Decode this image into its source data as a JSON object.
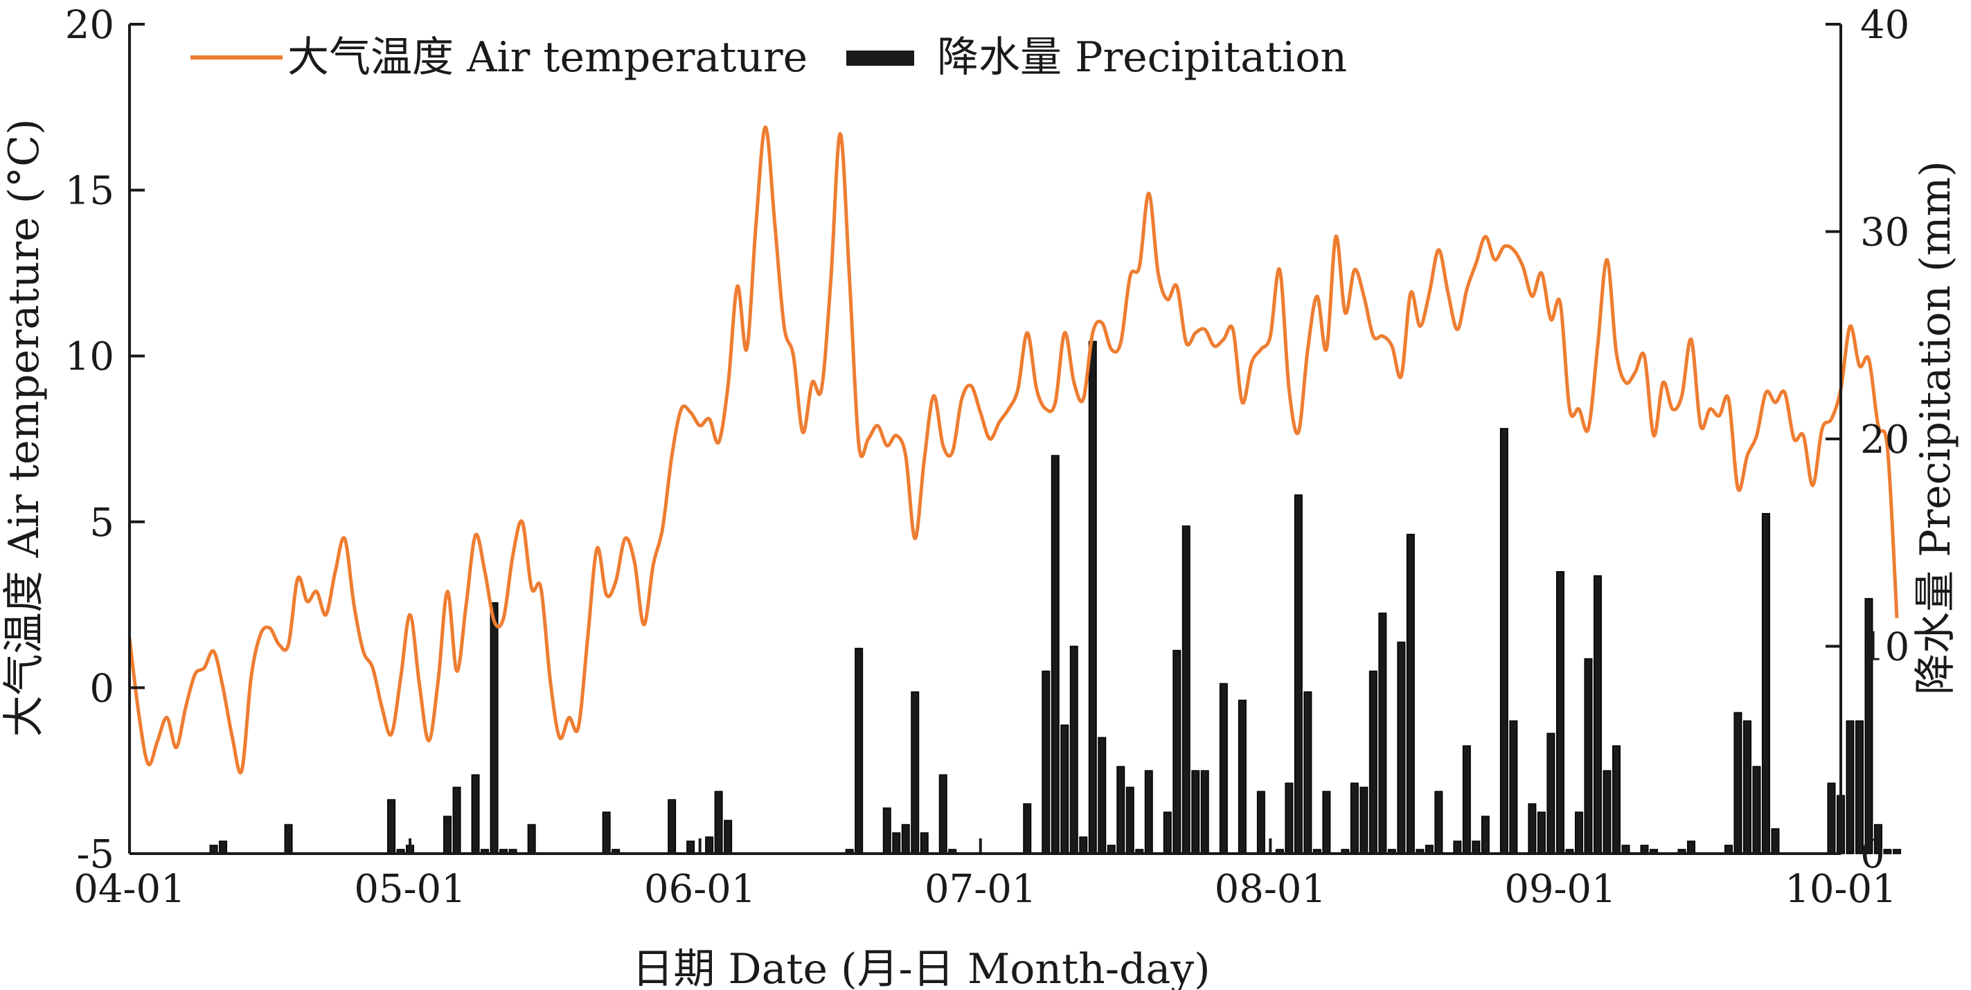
{
  "chart_data": {
    "type": "bar+line",
    "xlabel": "日期 Date (月-日 Month-day)",
    "ylabel_left": "大气温度 Air temperature (°C)",
    "ylabel_right": "降水量 Precipitation (mm)",
    "x_range": [
      "04-01",
      "10-01"
    ],
    "x_ticks": [
      "04-01",
      "05-01",
      "06-01",
      "07-01",
      "08-01",
      "09-01",
      "10-01"
    ],
    "y_left": {
      "min": -5,
      "max": 20,
      "ticks": [
        "-5",
        "0",
        "5",
        "10",
        "15",
        "20"
      ]
    },
    "y_right": {
      "min": 0,
      "max": 40,
      "ticks": [
        "0",
        "10",
        "20",
        "30",
        "40"
      ]
    },
    "legend_position": "top-left",
    "grid": false,
    "series": [
      {
        "name": "大气温度 Air temperature",
        "kind": "line",
        "axis": "left",
        "color": "#EE7D31",
        "points": [
          [
            "04-01",
            1.5
          ],
          [
            "04-02",
            -0.8
          ],
          [
            "04-03",
            -2.3
          ],
          [
            "04-04",
            -1.6
          ],
          [
            "04-05",
            -0.9
          ],
          [
            "04-06",
            -1.8
          ],
          [
            "04-07",
            -0.6
          ],
          [
            "04-08",
            0.4
          ],
          [
            "04-09",
            0.6
          ],
          [
            "04-10",
            1.1
          ],
          [
            "04-11",
            0.0
          ],
          [
            "04-12",
            -1.5
          ],
          [
            "04-13",
            -2.5
          ],
          [
            "04-14",
            0.3
          ],
          [
            "04-15",
            1.6
          ],
          [
            "04-16",
            1.8
          ],
          [
            "04-17",
            1.3
          ],
          [
            "04-18",
            1.3
          ],
          [
            "04-19",
            3.3
          ],
          [
            "04-20",
            2.6
          ],
          [
            "04-21",
            2.9
          ],
          [
            "04-22",
            2.2
          ],
          [
            "04-23",
            3.5
          ],
          [
            "04-24",
            4.5
          ],
          [
            "04-25",
            2.5
          ],
          [
            "04-26",
            1.1
          ],
          [
            "04-27",
            0.6
          ],
          [
            "04-28",
            -0.6
          ],
          [
            "04-29",
            -1.4
          ],
          [
            "04-30",
            0.3
          ],
          [
            "05-01",
            2.2
          ],
          [
            "05-02",
            0.1
          ],
          [
            "05-03",
            -1.6
          ],
          [
            "05-04",
            0.2
          ],
          [
            "05-05",
            2.9
          ],
          [
            "05-06",
            0.5
          ],
          [
            "05-07",
            2.5
          ],
          [
            "05-08",
            4.6
          ],
          [
            "05-09",
            3.5
          ],
          [
            "05-10",
            2.0
          ],
          [
            "05-11",
            2.1
          ],
          [
            "05-12",
            4.0
          ],
          [
            "05-13",
            5.0
          ],
          [
            "05-14",
            3.0
          ],
          [
            "05-15",
            3.0
          ],
          [
            "05-16",
            0.2
          ],
          [
            "05-17",
            -1.5
          ],
          [
            "05-18",
            -0.9
          ],
          [
            "05-19",
            -1.2
          ],
          [
            "05-20",
            1.5
          ],
          [
            "05-21",
            4.2
          ],
          [
            "05-22",
            2.8
          ],
          [
            "05-23",
            3.2
          ],
          [
            "05-24",
            4.5
          ],
          [
            "05-25",
            3.8
          ],
          [
            "05-26",
            1.9
          ],
          [
            "05-27",
            3.7
          ],
          [
            "05-28",
            4.8
          ],
          [
            "05-29",
            7.0
          ],
          [
            "05-30",
            8.4
          ],
          [
            "05-31",
            8.3
          ],
          [
            "06-01",
            7.9
          ],
          [
            "06-02",
            8.1
          ],
          [
            "06-03",
            7.4
          ],
          [
            "06-04",
            9.1
          ],
          [
            "06-05",
            12.1
          ],
          [
            "06-06",
            10.2
          ],
          [
            "06-07",
            14.0
          ],
          [
            "06-08",
            16.9
          ],
          [
            "06-09",
            14.0
          ],
          [
            "06-10",
            10.9
          ],
          [
            "06-11",
            10.0
          ],
          [
            "06-12",
            7.7
          ],
          [
            "06-13",
            9.2
          ],
          [
            "06-14",
            9.0
          ],
          [
            "06-15",
            12.3
          ],
          [
            "06-16",
            16.7
          ],
          [
            "06-17",
            12.3
          ],
          [
            "06-18",
            7.3
          ],
          [
            "06-19",
            7.5
          ],
          [
            "06-20",
            7.9
          ],
          [
            "06-21",
            7.3
          ],
          [
            "06-22",
            7.6
          ],
          [
            "06-23",
            7.0
          ],
          [
            "06-24",
            4.5
          ],
          [
            "06-25",
            6.9
          ],
          [
            "06-26",
            8.8
          ],
          [
            "06-27",
            7.3
          ],
          [
            "06-28",
            7.1
          ],
          [
            "06-29",
            8.7
          ],
          [
            "06-30",
            9.1
          ],
          [
            "07-01",
            8.3
          ],
          [
            "07-02",
            7.5
          ],
          [
            "07-03",
            8.0
          ],
          [
            "07-04",
            8.4
          ],
          [
            "07-05",
            9.0
          ],
          [
            "07-06",
            10.7
          ],
          [
            "07-07",
            9.0
          ],
          [
            "07-08",
            8.4
          ],
          [
            "07-09",
            8.6
          ],
          [
            "07-10",
            10.7
          ],
          [
            "07-11",
            9.2
          ],
          [
            "07-12",
            8.7
          ],
          [
            "07-13",
            10.7
          ],
          [
            "07-14",
            11.0
          ],
          [
            "07-15",
            10.2
          ],
          [
            "07-16",
            10.4
          ],
          [
            "07-17",
            12.4
          ],
          [
            "07-18",
            12.7
          ],
          [
            "07-19",
            14.9
          ],
          [
            "07-20",
            12.5
          ],
          [
            "07-21",
            11.7
          ],
          [
            "07-22",
            12.1
          ],
          [
            "07-23",
            10.4
          ],
          [
            "07-24",
            10.7
          ],
          [
            "07-25",
            10.8
          ],
          [
            "07-26",
            10.3
          ],
          [
            "07-27",
            10.5
          ],
          [
            "07-28",
            10.8
          ],
          [
            "07-29",
            8.6
          ],
          [
            "07-30",
            9.8
          ],
          [
            "07-31",
            10.2
          ],
          [
            "08-01",
            10.6
          ],
          [
            "08-02",
            12.6
          ],
          [
            "08-03",
            9.0
          ],
          [
            "08-04",
            7.7
          ],
          [
            "08-05",
            10.2
          ],
          [
            "08-06",
            11.8
          ],
          [
            "08-07",
            10.2
          ],
          [
            "08-08",
            13.6
          ],
          [
            "08-09",
            11.3
          ],
          [
            "08-10",
            12.6
          ],
          [
            "08-11",
            11.8
          ],
          [
            "08-12",
            10.6
          ],
          [
            "08-13",
            10.6
          ],
          [
            "08-14",
            10.3
          ],
          [
            "08-15",
            9.4
          ],
          [
            "08-16",
            11.9
          ],
          [
            "08-17",
            10.9
          ],
          [
            "08-18",
            11.9
          ],
          [
            "08-19",
            13.2
          ],
          [
            "08-20",
            11.9
          ],
          [
            "08-21",
            10.8
          ],
          [
            "08-22",
            12.0
          ],
          [
            "08-23",
            12.8
          ],
          [
            "08-24",
            13.6
          ],
          [
            "08-25",
            12.9
          ],
          [
            "08-26",
            13.3
          ],
          [
            "08-27",
            13.2
          ],
          [
            "08-28",
            12.7
          ],
          [
            "08-29",
            11.8
          ],
          [
            "08-30",
            12.5
          ],
          [
            "08-31",
            11.1
          ],
          [
            "09-01",
            11.6
          ],
          [
            "09-02",
            8.4
          ],
          [
            "09-03",
            8.4
          ],
          [
            "09-04",
            7.8
          ],
          [
            "09-05",
            10.3
          ],
          [
            "09-06",
            12.9
          ],
          [
            "09-07",
            10.1
          ],
          [
            "09-08",
            9.2
          ],
          [
            "09-09",
            9.5
          ],
          [
            "09-10",
            10.0
          ],
          [
            "09-11",
            7.6
          ],
          [
            "09-12",
            9.2
          ],
          [
            "09-13",
            8.4
          ],
          [
            "09-14",
            8.8
          ],
          [
            "09-15",
            10.5
          ],
          [
            "09-16",
            7.9
          ],
          [
            "09-17",
            8.4
          ],
          [
            "09-18",
            8.2
          ],
          [
            "09-19",
            8.7
          ],
          [
            "09-20",
            6.0
          ],
          [
            "09-21",
            7.0
          ],
          [
            "09-22",
            7.6
          ],
          [
            "09-23",
            8.9
          ],
          [
            "09-24",
            8.6
          ],
          [
            "09-25",
            8.9
          ],
          [
            "09-26",
            7.5
          ],
          [
            "09-27",
            7.6
          ],
          [
            "09-28",
            6.1
          ],
          [
            "09-29",
            7.8
          ],
          [
            "09-30",
            8.1
          ],
          [
            "10-01",
            9.0
          ],
          [
            "10-02",
            10.9
          ],
          [
            "10-03",
            9.7
          ],
          [
            "10-04",
            9.9
          ],
          [
            "10-05",
            7.9
          ],
          [
            "10-06",
            7.2
          ],
          [
            "10-07",
            2.1
          ]
        ]
      },
      {
        "name": "降水量 Precipitation",
        "kind": "bar",
        "axis": "right",
        "color": "#1a1a1a",
        "points": [
          [
            "04-10",
            0.4
          ],
          [
            "04-11",
            0.6
          ],
          [
            "04-18",
            1.4
          ],
          [
            "04-29",
            2.6
          ],
          [
            "04-30",
            0.2
          ],
          [
            "05-01",
            0.4
          ],
          [
            "05-05",
            1.8
          ],
          [
            "05-06",
            3.2
          ],
          [
            "05-08",
            3.8
          ],
          [
            "05-09",
            0.2
          ],
          [
            "05-10",
            12.1
          ],
          [
            "05-11",
            0.2
          ],
          [
            "05-12",
            0.2
          ],
          [
            "05-14",
            1.4
          ],
          [
            "05-22",
            2.0
          ],
          [
            "05-23",
            0.2
          ],
          [
            "05-29",
            2.6
          ],
          [
            "05-31",
            0.6
          ],
          [
            "06-02",
            0.8
          ],
          [
            "06-03",
            3.0
          ],
          [
            "06-04",
            1.6
          ],
          [
            "06-17",
            0.2
          ],
          [
            "06-18",
            9.9
          ],
          [
            "06-21",
            2.2
          ],
          [
            "06-22",
            1.0
          ],
          [
            "06-23",
            1.4
          ],
          [
            "06-24",
            7.8
          ],
          [
            "06-25",
            1.0
          ],
          [
            "06-27",
            3.8
          ],
          [
            "06-28",
            0.2
          ],
          [
            "07-06",
            2.4
          ],
          [
            "07-08",
            8.8
          ],
          [
            "07-09",
            19.2
          ],
          [
            "07-10",
            6.2
          ],
          [
            "07-11",
            10.0
          ],
          [
            "07-12",
            0.8
          ],
          [
            "07-13",
            24.7
          ],
          [
            "07-14",
            5.6
          ],
          [
            "07-15",
            0.4
          ],
          [
            "07-16",
            4.2
          ],
          [
            "07-17",
            3.2
          ],
          [
            "07-18",
            0.2
          ],
          [
            "07-19",
            4.0
          ],
          [
            "07-21",
            2.0
          ],
          [
            "07-22",
            9.8
          ],
          [
            "07-23",
            15.8
          ],
          [
            "07-24",
            4.0
          ],
          [
            "07-25",
            4.0
          ],
          [
            "07-27",
            8.2
          ],
          [
            "07-29",
            7.4
          ],
          [
            "07-31",
            3.0
          ],
          [
            "08-02",
            0.2
          ],
          [
            "08-03",
            3.4
          ],
          [
            "08-04",
            17.3
          ],
          [
            "08-05",
            7.8
          ],
          [
            "08-06",
            0.2
          ],
          [
            "08-07",
            3.0
          ],
          [
            "08-09",
            0.2
          ],
          [
            "08-10",
            3.4
          ],
          [
            "08-11",
            3.2
          ],
          [
            "08-12",
            8.8
          ],
          [
            "08-13",
            11.6
          ],
          [
            "08-14",
            0.2
          ],
          [
            "08-15",
            10.2
          ],
          [
            "08-16",
            15.4
          ],
          [
            "08-17",
            0.2
          ],
          [
            "08-18",
            0.4
          ],
          [
            "08-19",
            3.0
          ],
          [
            "08-21",
            0.6
          ],
          [
            "08-22",
            5.2
          ],
          [
            "08-23",
            0.6
          ],
          [
            "08-24",
            1.8
          ],
          [
            "08-26",
            20.5
          ],
          [
            "08-27",
            6.4
          ],
          [
            "08-29",
            2.4
          ],
          [
            "08-30",
            2.0
          ],
          [
            "08-31",
            5.8
          ],
          [
            "09-01",
            13.6
          ],
          [
            "09-02",
            0.2
          ],
          [
            "09-03",
            2.0
          ],
          [
            "09-04",
            9.4
          ],
          [
            "09-05",
            13.4
          ],
          [
            "09-06",
            4.0
          ],
          [
            "09-07",
            5.2
          ],
          [
            "09-08",
            0.4
          ],
          [
            "09-10",
            0.4
          ],
          [
            "09-11",
            0.2
          ],
          [
            "09-14",
            0.2
          ],
          [
            "09-15",
            0.6
          ],
          [
            "09-19",
            0.4
          ],
          [
            "09-20",
            6.8
          ],
          [
            "09-21",
            6.4
          ],
          [
            "09-22",
            4.2
          ],
          [
            "09-23",
            16.4
          ],
          [
            "09-24",
            1.2
          ],
          [
            "09-30",
            3.4
          ],
          [
            "10-01",
            2.8
          ],
          [
            "10-02",
            6.4
          ],
          [
            "10-03",
            6.4
          ],
          [
            "10-04",
            12.3
          ],
          [
            "10-05",
            1.4
          ],
          [
            "10-06",
            0.2
          ],
          [
            "10-07",
            0.2
          ]
        ]
      }
    ]
  }
}
